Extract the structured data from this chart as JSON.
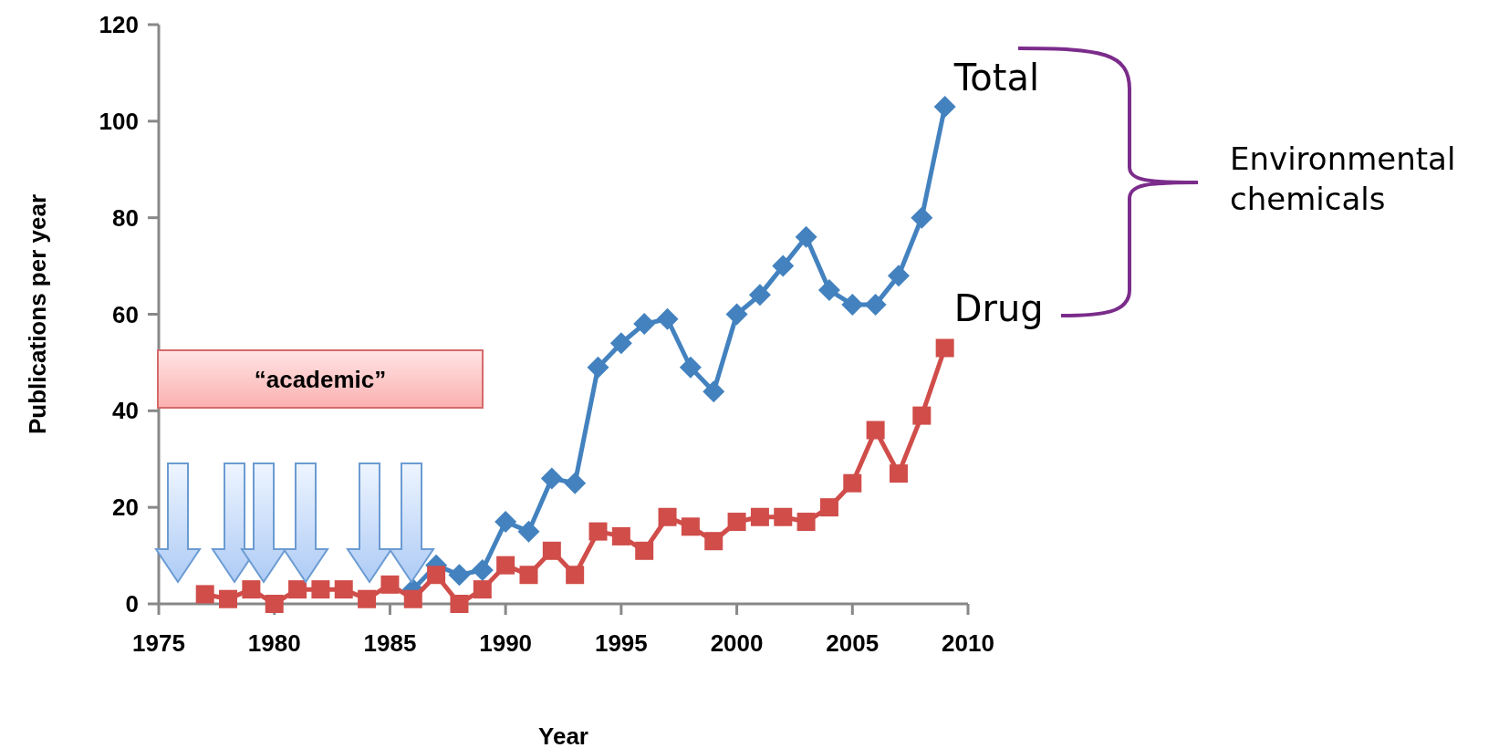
{
  "chart_data": {
    "type": "line",
    "xlabel": "Year",
    "ylabel": "Publications per year",
    "xlim": [
      1975,
      2010
    ],
    "xticks": [
      1975,
      1980,
      1985,
      1990,
      1995,
      2000,
      2005,
      2010
    ],
    "ylim": [
      0,
      120
    ],
    "yticks": [
      0,
      20,
      40,
      60,
      80,
      100,
      120
    ],
    "grid": false,
    "x": [
      1977,
      1978,
      1979,
      1980,
      1981,
      1982,
      1983,
      1984,
      1985,
      1986,
      1987,
      1988,
      1989,
      1990,
      1991,
      1992,
      1993,
      1994,
      1995,
      1996,
      1997,
      1998,
      1999,
      2000,
      2001,
      2002,
      2003,
      2004,
      2005,
      2006,
      2007,
      2008,
      2009
    ],
    "series": [
      {
        "name": "Total",
        "color": "#4382bf",
        "marker": "diamond",
        "values": [
          null,
          null,
          null,
          null,
          null,
          null,
          null,
          null,
          null,
          3,
          8,
          6,
          7,
          17,
          15,
          26,
          25,
          49,
          54,
          58,
          59,
          49,
          44,
          60,
          64,
          70,
          76,
          65,
          62,
          62,
          68,
          80,
          103
        ]
      },
      {
        "name": "Drug",
        "color": "#d04d4a",
        "marker": "square",
        "values": [
          2,
          1,
          3,
          0,
          3,
          3,
          3,
          1,
          4,
          1,
          6,
          0,
          3,
          8,
          6,
          11,
          6,
          15,
          14,
          11,
          18,
          16,
          13,
          17,
          18,
          18,
          17,
          20,
          25,
          36,
          27,
          39,
          53
        ]
      }
    ],
    "annotations": [
      "“academic”",
      "Environmental chemicals"
    ]
  }
}
